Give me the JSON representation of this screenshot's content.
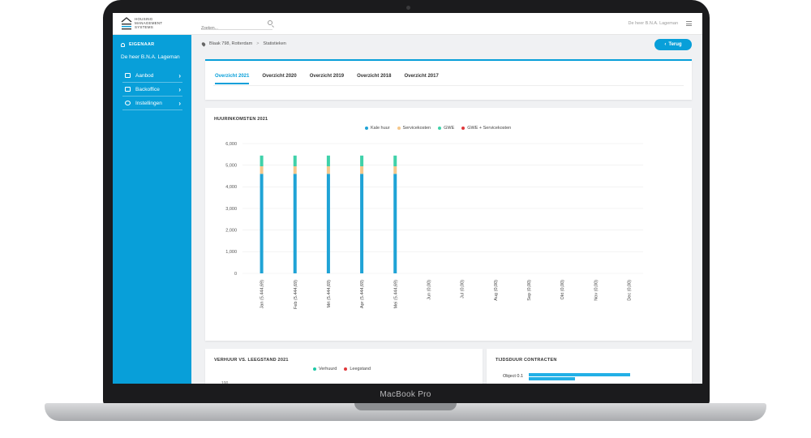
{
  "device": {
    "brand_label": "MacBook Pro"
  },
  "header": {
    "logo_lines": [
      "HOUSING",
      "MANAGEMENT",
      "SYSTEMS"
    ],
    "search_placeholder": "Zoeken...",
    "user_name": "De heer B.N.A. Lageman"
  },
  "sidebar": {
    "role": "EIGENAAR",
    "owner": "De heer B.N.A. Lageman",
    "items": [
      {
        "label": "Aanbod",
        "icon": "home-icon"
      },
      {
        "label": "Backoffice",
        "icon": "briefcase-icon"
      },
      {
        "label": "Instellingen",
        "icon": "gear-icon"
      }
    ]
  },
  "breadcrumb": {
    "location": "Blaak 798, Rotterdam",
    "separator": ">",
    "page": "Statistieken"
  },
  "back_button": {
    "label": "Terug"
  },
  "tabs": [
    {
      "label": "Overzicht 2021",
      "active": true
    },
    {
      "label": "Overzicht 2020",
      "active": false
    },
    {
      "label": "Overzicht 2019",
      "active": false
    },
    {
      "label": "Overzicht 2018",
      "active": false
    },
    {
      "label": "Overzicht 2017",
      "active": false
    }
  ],
  "income_panel": {
    "title": "HUURINKOMSTEN 2021"
  },
  "occupancy_panel": {
    "title": "VERHUUR VS. LEEGSTAND 2021",
    "legend": [
      {
        "name": "Verhuurd",
        "color": "#1dc8a6"
      },
      {
        "name": "Leegstand",
        "color": "#e0383b"
      }
    ],
    "tick_visible": "100"
  },
  "contracts_panel": {
    "title": "TIJDSDUUR CONTRACTEN",
    "row_label": "Object 0.1",
    "bar_color": "#23b0e6"
  },
  "chart_data": {
    "type": "bar",
    "stacked": true,
    "categories": [
      "Jan (5.444,69)",
      "Feb (5.444,69)",
      "Mrt (5.444,69)",
      "Apr (5.444,69)",
      "Mei (5.444,69)",
      "Jun (0,00)",
      "Jul (0,00)",
      "Aug (0,00)",
      "Sep (0,00)",
      "Okt (0,00)",
      "Nov (0,00)",
      "Dec (0,00)"
    ],
    "series": [
      {
        "name": "Kale huur",
        "color": "#1fa3d6",
        "values": [
          4600,
          4600,
          4600,
          4600,
          4600,
          0,
          0,
          0,
          0,
          0,
          0,
          0
        ]
      },
      {
        "name": "Servicekosten",
        "color": "#f5c78a",
        "values": [
          350,
          350,
          350,
          350,
          350,
          0,
          0,
          0,
          0,
          0,
          0,
          0
        ]
      },
      {
        "name": "GWE",
        "color": "#3fd1a9",
        "values": [
          495,
          495,
          495,
          495,
          495,
          0,
          0,
          0,
          0,
          0,
          0,
          0
        ]
      },
      {
        "name": "GWE + Servicekosten",
        "color": "#e0383b",
        "values": [
          0,
          0,
          0,
          0,
          0,
          0,
          0,
          0,
          0,
          0,
          0,
          0
        ]
      }
    ],
    "yticks": [
      "0",
      "1,000",
      "2,000",
      "3,000",
      "4,000",
      "5,000",
      "6,000"
    ],
    "ylim": [
      0,
      6000
    ],
    "grid": true,
    "legend_position": "top"
  }
}
